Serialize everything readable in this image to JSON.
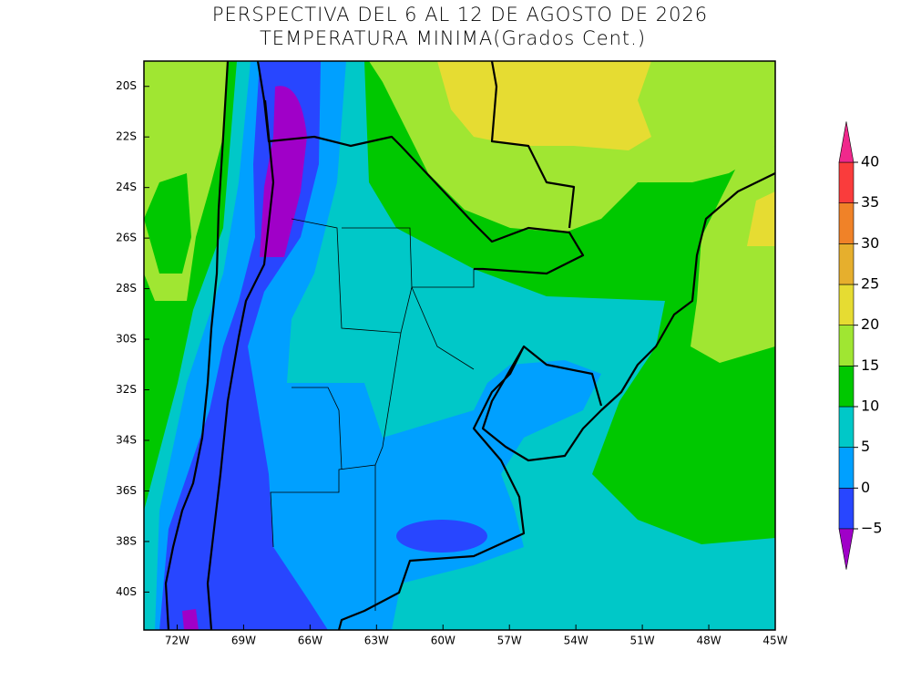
{
  "map": {
    "title": "PERSPECTIVA DEL 6 AL 12 DE AGOSTO DE 2026",
    "subtitle": "TEMPERATURA MINIMA(Grados Cent.)",
    "lat_range": [
      -19,
      -41.5
    ],
    "lon_range": [
      -73.5,
      -45
    ],
    "lat_ticks": [
      {
        "value": -20,
        "label": "20S"
      },
      {
        "value": -22,
        "label": "22S"
      },
      {
        "value": -24,
        "label": "24S"
      },
      {
        "value": -26,
        "label": "26S"
      },
      {
        "value": -28,
        "label": "28S"
      },
      {
        "value": -30,
        "label": "30S"
      },
      {
        "value": -32,
        "label": "32S"
      },
      {
        "value": -34,
        "label": "34S"
      },
      {
        "value": -36,
        "label": "36S"
      },
      {
        "value": -38,
        "label": "38S"
      },
      {
        "value": -40,
        "label": "40S"
      }
    ],
    "lon_ticks": [
      {
        "value": -72,
        "label": "72W"
      },
      {
        "value": -69,
        "label": "69W"
      },
      {
        "value": -66,
        "label": "66W"
      },
      {
        "value": -63,
        "label": "63W"
      },
      {
        "value": -60,
        "label": "60W"
      },
      {
        "value": -57,
        "label": "57W"
      },
      {
        "value": -54,
        "label": "54W"
      },
      {
        "value": -51,
        "label": "51W"
      },
      {
        "value": -48,
        "label": "48W"
      },
      {
        "value": -45,
        "label": "45W"
      }
    ],
    "colorbar": {
      "ticks": [
        {
          "value": -5,
          "label": "−5"
        },
        0,
        5,
        10,
        15,
        20,
        25,
        30,
        35,
        40
      ],
      "below_color": "#a000c8",
      "colors": [
        "#2846ff",
        "#00a0ff",
        "#00c8c8",
        "#00c800",
        "#a0e632",
        "#e6dc32",
        "#e6af2d",
        "#f08228",
        "#fa3c3c"
      ],
      "above_color": "#f0288c"
    }
  }
}
